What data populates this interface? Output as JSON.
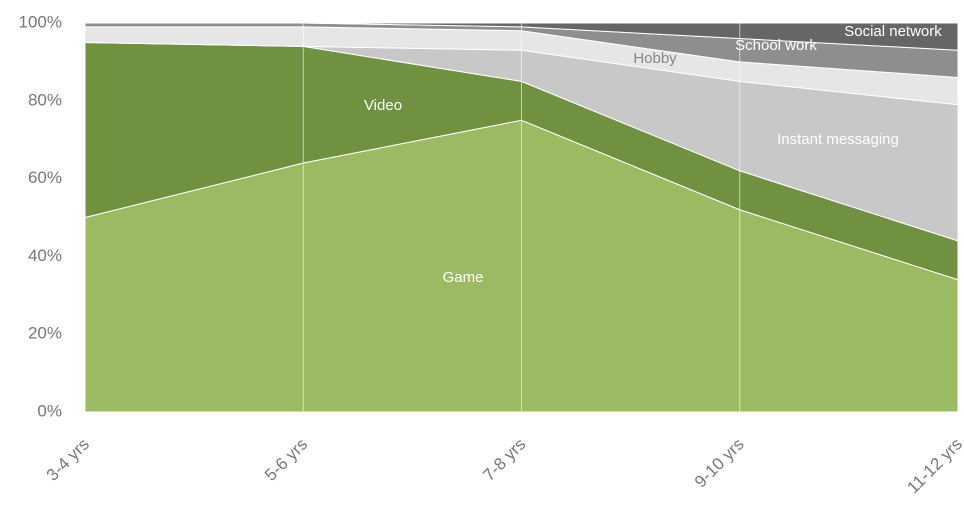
{
  "chart_data": {
    "type": "stacked_area",
    "categories": [
      "3-4 yrs",
      "5-6 yrs",
      "7-8 yrs",
      "9-10 yrs",
      "11-12 yrs"
    ],
    "series": [
      {
        "name": "Game",
        "color": "#9bbb62",
        "values": [
          50,
          64,
          75,
          52,
          34
        ]
      },
      {
        "name": "Video",
        "color": "#6f9140",
        "values": [
          45,
          30,
          10,
          10,
          10
        ]
      },
      {
        "name": "Instant messaging",
        "color": "#c8c8c8",
        "values": [
          0,
          0,
          8,
          23,
          35
        ]
      },
      {
        "name": "Hobby",
        "color": "#e6e6e6",
        "values": [
          4,
          5,
          5,
          5,
          7
        ]
      },
      {
        "name": "School work",
        "color": "#8e8e8e",
        "values": [
          1,
          1,
          1,
          6,
          7
        ]
      },
      {
        "name": "Social network",
        "color": "#666666",
        "values": [
          0,
          0,
          1,
          4,
          7
        ]
      }
    ],
    "ylim": [
      0,
      100
    ],
    "yticks": [
      {
        "value": 0,
        "label": "0%"
      },
      {
        "value": 20,
        "label": "20%"
      },
      {
        "value": 40,
        "label": "40%"
      },
      {
        "value": 60,
        "label": "60%"
      },
      {
        "value": 80,
        "label": "80%"
      },
      {
        "value": 100,
        "label": "100%"
      }
    ]
  }
}
